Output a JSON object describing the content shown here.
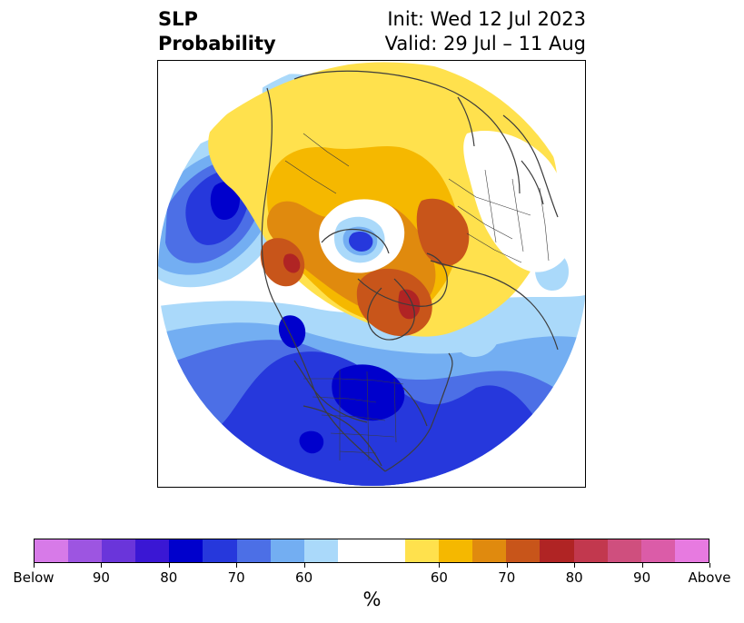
{
  "title": {
    "left_line1": "SLP",
    "left_line2": "Probability",
    "right_line1": "Init: Wed 12 Jul 2023",
    "right_line2": "Valid: 29 Jul – 11 Aug"
  },
  "map": {
    "projection": "polar stereographic (Northern Hemisphere)",
    "variable": "SLP"
  },
  "colorbar": {
    "below_colors": [
      "#d77ae8",
      "#9d55e1",
      "#6a35da",
      "#3a17d4",
      "#0000cc",
      "#2638dc",
      "#4c6fe6",
      "#73aef2",
      "#aad9fa"
    ],
    "neutral_color": "#ffffff",
    "above_colors": [
      "#ffe14d",
      "#f5b800",
      "#e08a0e",
      "#c8551a",
      "#b02424",
      "#c2384e",
      "#cf4f7e",
      "#db5ca8",
      "#e77ae0"
    ],
    "tick_labels": [
      "Below",
      "90",
      "80",
      "70",
      "60",
      "60",
      "70",
      "80",
      "90",
      "Above"
    ],
    "unit_label": "%"
  },
  "palette": {
    "coast_color": "#3c3c3c",
    "frame_color": "#000000"
  }
}
